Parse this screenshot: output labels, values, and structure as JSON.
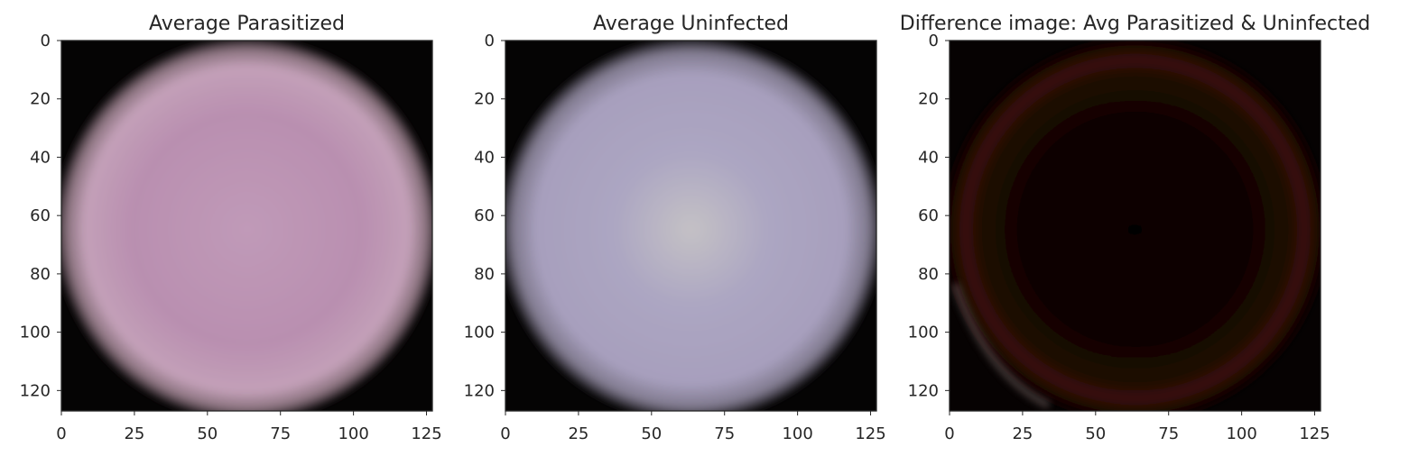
{
  "chart_data": [
    {
      "type": "heatmap",
      "title": "Average Parasitized",
      "image": "circular pink cell on black background",
      "image_size": [
        128,
        128
      ],
      "colors": {
        "cell": "#b98fb0",
        "cell_center": "#c09ab8",
        "background": "#050404"
      },
      "xlim": [
        0,
        127
      ],
      "ylim": [
        127,
        0
      ],
      "xticks": [
        0,
        25,
        50,
        75,
        100,
        125
      ],
      "yticks": [
        0,
        20,
        40,
        60,
        80,
        100,
        120
      ],
      "xlabel": "",
      "ylabel": ""
    },
    {
      "type": "heatmap",
      "title": "Average Uninfected",
      "image": "circular lavender cell on black background",
      "image_size": [
        128,
        128
      ],
      "colors": {
        "cell": "#a79fbd",
        "cell_center": "#c4c1c5",
        "background": "#050404"
      },
      "xlim": [
        0,
        127
      ],
      "ylim": [
        127,
        0
      ],
      "xticks": [
        0,
        25,
        50,
        75,
        100,
        125
      ],
      "yticks": [
        0,
        20,
        40,
        60,
        80,
        100,
        120
      ],
      "xlabel": "",
      "ylabel": ""
    },
    {
      "type": "heatmap",
      "title": "Difference image: Avg Parasitized & Uninfected",
      "image": "mostly black with faint dark red ring",
      "image_size": [
        128,
        128
      ],
      "colors": {
        "ring": "#3a1208",
        "edge_speckle": "#6a5a58",
        "background": "#060202"
      },
      "xlim": [
        0,
        127
      ],
      "ylim": [
        127,
        0
      ],
      "xticks": [
        0,
        25,
        50,
        75,
        100,
        125
      ],
      "yticks": [
        0,
        20,
        40,
        60,
        80,
        100,
        120
      ],
      "xlabel": "",
      "ylabel": ""
    }
  ]
}
